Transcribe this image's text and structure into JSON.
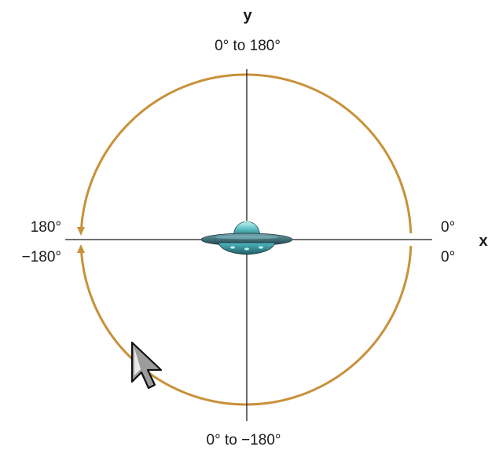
{
  "axes": {
    "x_label": "x",
    "y_label": "y"
  },
  "angle_labels": {
    "top": "0° to 180°",
    "bottom": "0° to −180°",
    "left_upper": "180°",
    "left_lower": "−180°",
    "right_upper": "0°",
    "right_lower": "0°"
  },
  "colors": {
    "orbit": "#C8913A",
    "axis": "#1a1a1a",
    "saucer_body": "#3F6F78",
    "saucer_dome": "#5FC3C8"
  },
  "icons": {
    "object": "flying-saucer-icon",
    "pointer": "mouse-pointer-icon"
  }
}
